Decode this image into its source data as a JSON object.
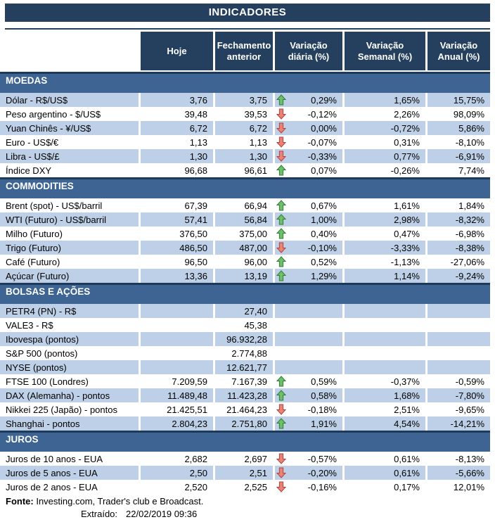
{
  "title": "INDICADORES",
  "columns": [
    "Hoje",
    "Fechamento anterior",
    "Variação diária (%)",
    "Variação Semanal (%)",
    "Variação Anual (%)"
  ],
  "sections": [
    {
      "name": "MOEDAS",
      "rows": [
        {
          "label": "Dólar - R$/US$",
          "hoje": "3,76",
          "fech": "3,75",
          "arrow": "up",
          "diaria": "0,29%",
          "semanal": "1,65%",
          "anual": "15,75%"
        },
        {
          "label": "Peso argentino - $/US$",
          "hoje": "39,48",
          "fech": "39,53",
          "arrow": "down",
          "diaria": "-0,12%",
          "semanal": "2,26%",
          "anual": "98,09%"
        },
        {
          "label": "Yuan Chinês - ¥/US$",
          "hoje": "6,72",
          "fech": "6,72",
          "arrow": "down",
          "diaria": "0,00%",
          "semanal": "-0,72%",
          "anual": "5,86%"
        },
        {
          "label": "Euro - US$/€",
          "hoje": "1,13",
          "fech": "1,13",
          "arrow": "down",
          "diaria": "-0,07%",
          "semanal": "0,31%",
          "anual": "-8,10%"
        },
        {
          "label": "Libra - US$/£",
          "hoje": "1,30",
          "fech": "1,30",
          "arrow": "down",
          "diaria": "-0,33%",
          "semanal": "0,77%",
          "anual": "-6,91%"
        },
        {
          "label": "Índice DXY",
          "hoje": "96,68",
          "fech": "96,61",
          "arrow": "up",
          "diaria": "0,07%",
          "semanal": "-0,26%",
          "anual": "7,74%"
        }
      ]
    },
    {
      "name": "COMMODITIES",
      "rows": [
        {
          "label": "Brent (spot) - US$/barril",
          "hoje": "67,39",
          "fech": "66,94",
          "arrow": "up",
          "diaria": "0,67%",
          "semanal": "1,61%",
          "anual": "1,84%"
        },
        {
          "label": "WTI (Futuro) - US$/barril",
          "hoje": "57,41",
          "fech": "56,84",
          "arrow": "up",
          "diaria": "1,00%",
          "semanal": "2,98%",
          "anual": "-8,32%"
        },
        {
          "label": "Milho (Futuro)",
          "hoje": "376,50",
          "fech": "375,00",
          "arrow": "up",
          "diaria": "0,40%",
          "semanal": "0,47%",
          "anual": "-6,98%"
        },
        {
          "label": "Trigo (Futuro)",
          "hoje": "486,50",
          "fech": "487,00",
          "arrow": "down",
          "diaria": "-0,10%",
          "semanal": "-3,33%",
          "anual": "-8,38%"
        },
        {
          "label": "Café (Futuro)",
          "hoje": "96,50",
          "fech": "96,00",
          "arrow": "up",
          "diaria": "0,52%",
          "semanal": "-1,13%",
          "anual": "-27,06%"
        },
        {
          "label": "Açúcar (Futuro)",
          "hoje": "13,36",
          "fech": "13,19",
          "arrow": "up",
          "diaria": "1,29%",
          "semanal": "1,14%",
          "anual": "-9,24%"
        }
      ]
    },
    {
      "name": "BOLSAS E AÇÕES",
      "rows": [
        {
          "label": "PETR4 (PN) - R$",
          "hoje": "",
          "fech": "27,40",
          "arrow": "",
          "diaria": "",
          "semanal": "",
          "anual": ""
        },
        {
          "label": "VALE3 - R$",
          "hoje": "",
          "fech": "45,38",
          "arrow": "",
          "diaria": "",
          "semanal": "",
          "anual": ""
        },
        {
          "label": "Ibovespa (pontos)",
          "hoje": "",
          "fech": "96.932,28",
          "arrow": "",
          "diaria": "",
          "semanal": "",
          "anual": ""
        },
        {
          "label": "S&P 500 (pontos)",
          "hoje": "",
          "fech": "2.774,88",
          "arrow": "",
          "diaria": "",
          "semanal": "",
          "anual": ""
        },
        {
          "label": "NYSE (pontos)",
          "hoje": "",
          "fech": "12.621,77",
          "arrow": "",
          "diaria": "",
          "semanal": "",
          "anual": ""
        },
        {
          "label": "FTSE 100 (Londres)",
          "hoje": "7.209,59",
          "fech": "7.167,39",
          "arrow": "up",
          "diaria": "0,59%",
          "semanal": "-0,37%",
          "anual": "-0,59%"
        },
        {
          "label": "DAX (Alemanha) - pontos",
          "hoje": "11.489,48",
          "fech": "11.423,28",
          "arrow": "up",
          "diaria": "0,58%",
          "semanal": "1,68%",
          "anual": "-7,80%"
        },
        {
          "label": "Nikkei 225 (Japão) - pontos",
          "hoje": "21.425,51",
          "fech": "21.464,23",
          "arrow": "down",
          "diaria": "-0,18%",
          "semanal": "2,51%",
          "anual": "-9,65%"
        },
        {
          "label": "Shanghai - pontos",
          "hoje": "2.804,23",
          "fech": "2.751,80",
          "arrow": "up",
          "diaria": "1,91%",
          "semanal": "4,54%",
          "anual": "-14,21%"
        }
      ]
    },
    {
      "name": "JUROS",
      "rows": [
        {
          "label": "Juros de 10 anos - EUA",
          "hoje": "2,682",
          "fech": "2,697",
          "arrow": "down",
          "diaria": "-0,57%",
          "semanal": "0,61%",
          "anual": "-8,13%"
        },
        {
          "label": "Juros de 5 anos - EUA",
          "hoje": "2,50",
          "fech": "2,51",
          "arrow": "down",
          "diaria": "-0,20%",
          "semanal": "0,61%",
          "anual": "-5,66%"
        },
        {
          "label": "Juros de 2 anos - EUA",
          "hoje": "2,520",
          "fech": "2,525",
          "arrow": "down",
          "diaria": "-0,16%",
          "semanal": "0,17%",
          "anual": "12,01%"
        }
      ]
    }
  ],
  "footer": {
    "fonte_label": "Fonte:",
    "fonte_text": " Investing.com, Trader's club e Broadcast.",
    "extraido_label": "Extraído:",
    "extraido_value": "22/02/2019 09:36"
  },
  "colors": {
    "navy": "#24405E",
    "section_blue": "#3D6493",
    "section_border": "#1F3A58",
    "stripe_blue": "#BDD0E7",
    "up_arrow_fill": "#6DBE6D",
    "up_arrow_stroke": "#2F7D33",
    "down_arrow_fill": "#E8837B",
    "down_arrow_stroke": "#B74138"
  }
}
